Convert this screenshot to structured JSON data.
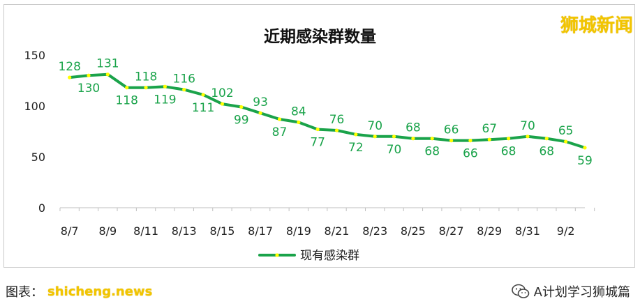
{
  "watermark_top": "狮城新闻",
  "bottom": {
    "source_label": "图表：",
    "source_mark": "shicheng.news",
    "account_name": "A计划学习狮城篇",
    "account_icon": "wechat-icon"
  },
  "chart_data": {
    "type": "line",
    "title": "近期感染群数量",
    "xlabel": "",
    "ylabel": "",
    "ylim": [
      0,
      150
    ],
    "yticks": [
      0,
      50,
      100,
      150
    ],
    "x": [
      "8/7",
      "8/8",
      "8/9",
      "8/10",
      "8/11",
      "8/12",
      "8/13",
      "8/14",
      "8/15",
      "8/16",
      "8/17",
      "8/18",
      "8/19",
      "8/20",
      "8/21",
      "8/22",
      "8/23",
      "8/24",
      "8/25",
      "8/26",
      "8/27",
      "8/28",
      "8/29",
      "8/30",
      "8/31",
      "9/1",
      "9/2",
      "9/3"
    ],
    "xtick_labels": [
      "8/7",
      "8/9",
      "8/11",
      "8/13",
      "8/15",
      "8/17",
      "8/19",
      "8/21",
      "8/23",
      "8/25",
      "8/27",
      "8/29",
      "8/31",
      "9/2"
    ],
    "series": [
      {
        "name": "现有感染群",
        "color": "#1aa34a",
        "marker_color": "#ffff00",
        "values": [
          128,
          130,
          131,
          118,
          118,
          119,
          116,
          111,
          102,
          99,
          93,
          87,
          84,
          77,
          76,
          72,
          70,
          70,
          68,
          68,
          66,
          66,
          67,
          68,
          70,
          68,
          65,
          59
        ]
      }
    ],
    "legend": "bottom-center",
    "grid": false,
    "label_color": "#1aa34a"
  }
}
